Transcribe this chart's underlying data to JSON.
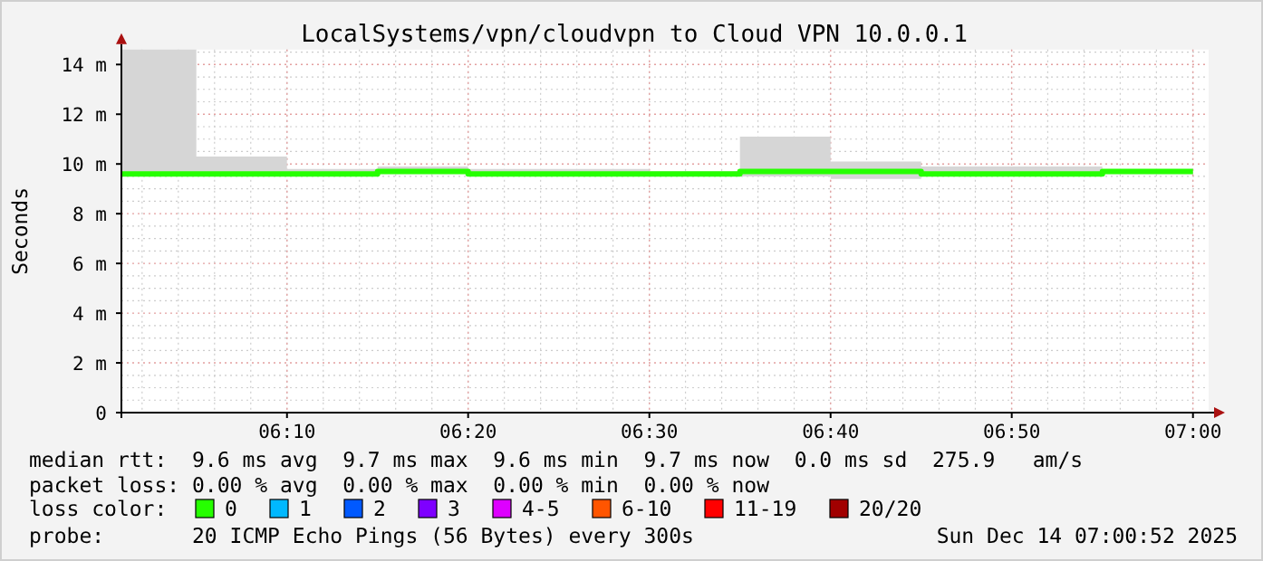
{
  "chart_data": {
    "type": "step",
    "title": "LocalSystems/vpn/cloudvpn to Cloud VPN 10.0.0.1",
    "ylabel": "Seconds",
    "x": [
      6.0144,
      6.0833,
      6.1667,
      6.25,
      6.3333,
      6.4167,
      6.5,
      6.5833,
      6.6667,
      6.75,
      6.8333,
      6.9167,
      7.0
    ],
    "xlim": [
      6.0144,
      7.0144
    ],
    "xticks": [
      {
        "value": 6.1667,
        "label": "06:10"
      },
      {
        "value": 6.3333,
        "label": "06:20"
      },
      {
        "value": 6.5,
        "label": "06:30"
      },
      {
        "value": 6.6667,
        "label": "06:40"
      },
      {
        "value": 6.8333,
        "label": "06:50"
      },
      {
        "value": 7.0,
        "label": "07:00"
      }
    ],
    "ylim": [
      0,
      14.6
    ],
    "yticks": [
      {
        "value": 0,
        "label": "0"
      },
      {
        "value": 2,
        "label": "2 m"
      },
      {
        "value": 4,
        "label": "4 m"
      },
      {
        "value": 6,
        "label": "6 m"
      },
      {
        "value": 8,
        "label": "8 m"
      },
      {
        "value": 10,
        "label": "10 m"
      },
      {
        "value": 12,
        "label": "12 m"
      },
      {
        "value": 14,
        "label": "14 m"
      }
    ],
    "grid": true,
    "legend": "bottom",
    "legend_title": "loss color:",
    "series": [
      {
        "name": "0",
        "color": "#26ff00",
        "values": [
          9.6,
          9.6,
          9.6,
          9.7,
          9.6,
          9.6,
          9.6,
          9.7,
          9.7,
          9.6,
          9.6,
          9.7,
          9.7
        ],
        "lower": [
          9.5,
          9.5,
          9.5,
          9.6,
          9.5,
          9.5,
          9.5,
          9.5,
          9.4,
          9.5,
          9.5,
          9.6,
          9.6
        ],
        "upper": [
          14.6,
          10.3,
          9.8,
          9.9,
          9.8,
          9.8,
          9.7,
          11.1,
          10.1,
          9.9,
          9.9,
          9.7,
          9.7
        ]
      },
      {
        "name": "1",
        "color": "#00b8ff",
        "values": [
          null,
          null,
          null,
          null,
          null,
          null,
          null,
          null,
          null,
          null,
          null,
          null,
          null
        ]
      },
      {
        "name": "2",
        "color": "#0059ff",
        "values": [
          null,
          null,
          null,
          null,
          null,
          null,
          null,
          null,
          null,
          null,
          null,
          null,
          null
        ]
      },
      {
        "name": "3",
        "color": "#7e00ff",
        "values": [
          null,
          null,
          null,
          null,
          null,
          null,
          null,
          null,
          null,
          null,
          null,
          null,
          null
        ]
      },
      {
        "name": "4-5",
        "color": "#dd00ff",
        "values": [
          null,
          null,
          null,
          null,
          null,
          null,
          null,
          null,
          null,
          null,
          null,
          null,
          null
        ]
      },
      {
        "name": "6-10",
        "color": "#ff5500",
        "values": [
          null,
          null,
          null,
          null,
          null,
          null,
          null,
          null,
          null,
          null,
          null,
          null,
          null
        ]
      },
      {
        "name": "11-19",
        "color": "#ff0000",
        "values": [
          null,
          null,
          null,
          null,
          null,
          null,
          null,
          null,
          null,
          null,
          null,
          null,
          null
        ]
      },
      {
        "name": "20/20",
        "color": "#a10000",
        "values": [
          null,
          null,
          null,
          null,
          null,
          null,
          null,
          null,
          null,
          null,
          null,
          null,
          null
        ]
      }
    ],
    "annotations": [
      "median rtt:  9.6 ms avg  9.7 ms max  9.6 ms min  9.7 ms now  0.0 ms sd  275.9   am/s",
      "packet loss: 0.00 % avg  0.00 % max  0.00 % min  0.00 % now",
      "probe:       20 ICMP Echo Pings (56 Bytes) every 300s",
      "Sun Dec 14 07:00:52 2025"
    ]
  }
}
